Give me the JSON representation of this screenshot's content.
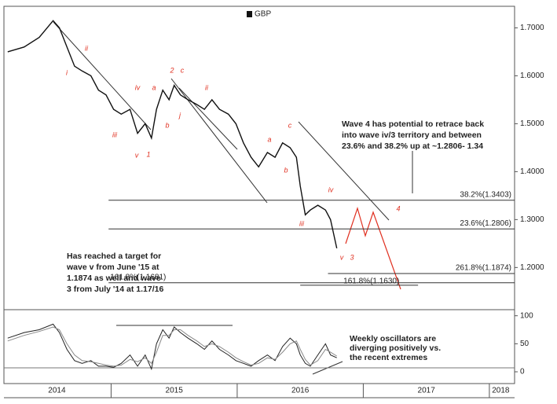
{
  "chart_data": {
    "type": "line",
    "x": [
      2014.18,
      2014.31,
      2014.43,
      2014.54,
      2014.59,
      2014.65,
      2014.71,
      2014.77,
      2014.84,
      2014.9,
      2014.96,
      2015.02,
      2015.08,
      2015.15,
      2015.21,
      2015.27,
      2015.32,
      2015.36,
      2015.41,
      2015.46,
      2015.5,
      2015.55,
      2015.61,
      2015.68,
      2015.74,
      2015.8,
      2015.86,
      2015.93,
      2015.99,
      2016.05,
      2016.11,
      2016.17,
      2016.24,
      2016.3,
      2016.36,
      2016.42,
      2016.47,
      2016.5,
      2016.54,
      2016.58,
      2016.64,
      2016.7,
      2016.74,
      2016.79
    ],
    "xlim": [
      2014.15,
      2018.2
    ],
    "xticks": [
      {
        "value": 2014.57,
        "label": "2014"
      },
      {
        "value": 2015.5,
        "label": "2015"
      },
      {
        "value": 2016.5,
        "label": "2016"
      },
      {
        "value": 2017.5,
        "label": "2017"
      },
      {
        "value": 2018.09,
        "label": "2018"
      }
    ],
    "year_boundaries": [
      2015,
      2016,
      2017,
      2018
    ],
    "series": [
      {
        "name": "GBP",
        "color": "#111111",
        "values": [
          1.65,
          1.66,
          1.68,
          1.715,
          1.7,
          1.66,
          1.62,
          1.61,
          1.6,
          1.57,
          1.56,
          1.53,
          1.52,
          1.53,
          1.48,
          1.5,
          1.47,
          1.53,
          1.57,
          1.55,
          1.58,
          1.56,
          1.55,
          1.54,
          1.53,
          1.55,
          1.53,
          1.52,
          1.5,
          1.46,
          1.43,
          1.41,
          1.44,
          1.43,
          1.46,
          1.45,
          1.43,
          1.37,
          1.31,
          1.32,
          1.33,
          1.32,
          1.3,
          1.24
        ]
      }
    ],
    "ylim": [
      1.112,
      1.745
    ],
    "yticks": [
      {
        "value": 1.2,
        "label": "1.2000"
      },
      {
        "value": 1.3,
        "label": "1.3000"
      },
      {
        "value": 1.4,
        "label": "1.4000"
      },
      {
        "value": 1.5,
        "label": "1.5000"
      },
      {
        "value": 1.6,
        "label": "1.6000"
      },
      {
        "value": 1.7,
        "label": "1.7000"
      }
    ],
    "oscillator": {
      "ylim": [
        -14,
        108
      ],
      "yticks": [
        0,
        50,
        100
      ],
      "series": [
        {
          "color": "#222222",
          "values": [
            60,
            70,
            75,
            85,
            70,
            40,
            20,
            15,
            20,
            10,
            10,
            8,
            15,
            30,
            10,
            30,
            5,
            50,
            75,
            60,
            80,
            70,
            60,
            50,
            40,
            55,
            40,
            30,
            20,
            15,
            10,
            20,
            30,
            20,
            45,
            60,
            50,
            30,
            15,
            10,
            30,
            50,
            30,
            25
          ]
        },
        {
          "color": "#888888",
          "values": [
            55,
            65,
            72,
            80,
            75,
            50,
            30,
            20,
            18,
            15,
            12,
            10,
            12,
            22,
            18,
            25,
            15,
            35,
            65,
            65,
            75,
            75,
            65,
            55,
            45,
            50,
            45,
            35,
            25,
            18,
            12,
            15,
            25,
            22,
            35,
            50,
            55,
            40,
            22,
            12,
            20,
            40,
            35,
            28
          ]
        }
      ]
    },
    "fib_levels": [
      {
        "value": 1.3403,
        "label": "38.2%(1.3403)",
        "from": 2014.98,
        "side": "right"
      },
      {
        "value": 1.2806,
        "label": "23.6%(1.2806)",
        "from": 2014.98,
        "side": "right"
      },
      {
        "value": 1.1874,
        "label": "261.8%(1.1874)",
        "from": 2016.72,
        "side": "right"
      },
      {
        "value": 1.1681,
        "label": "161.8%(1.1681)",
        "from": 2014.98,
        "side": "left"
      },
      {
        "value": 1.163,
        "label": "161.8%(1.1630)",
        "from": 2016.5,
        "side": "small"
      }
    ],
    "wave_labels": [
      "ii",
      "i",
      "iv",
      "iii",
      "v",
      "1",
      "2",
      "c",
      "a",
      "b",
      "j",
      "ii",
      "c",
      "a",
      "b",
      "iv",
      "iii",
      "v",
      "3",
      "4"
    ],
    "notes": [
      {
        "lines": [
          "Wave 4 has potential to retrace back",
          "into wave iv/3 territory and between",
          "23.6% and 38.2% up at ~1.2806- 1.34"
        ]
      },
      {
        "lines": [
          "Has reached a target for",
          "wave v from June '15  at",
          "1.1874 as well and wave",
          "3 from July '14 at 1.17/16"
        ]
      },
      {
        "lines": [
          "Weekly oscillators are",
          "diverging positively vs.",
          "the recent extremes"
        ]
      }
    ]
  }
}
